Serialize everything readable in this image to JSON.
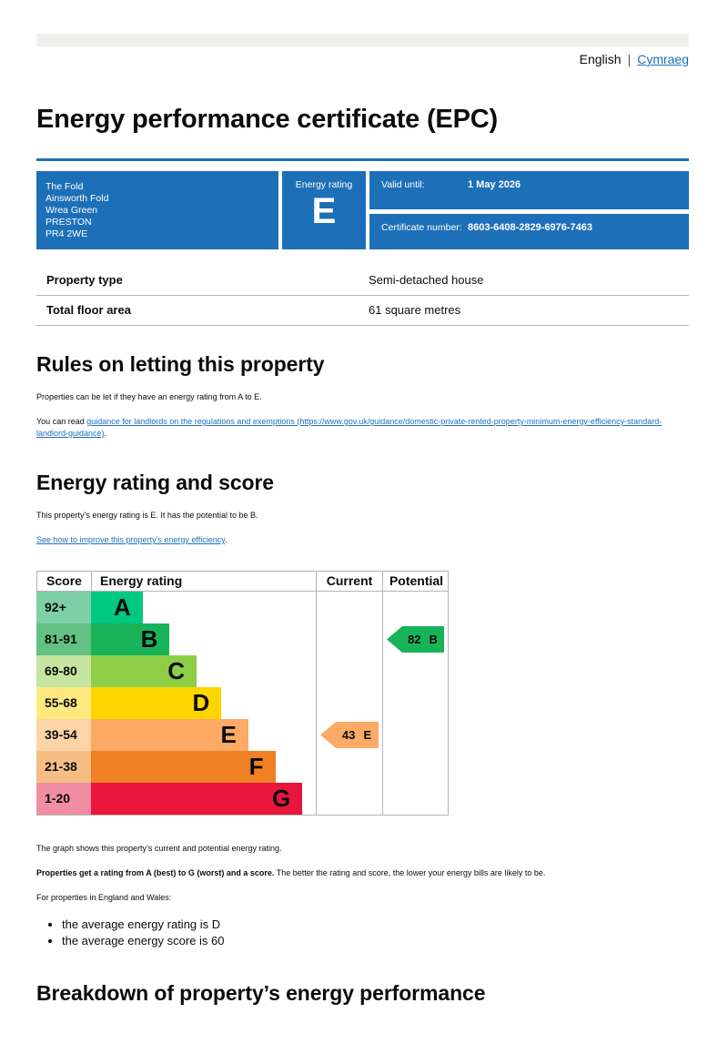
{
  "colors": {
    "accent_blue": "#1d70b8",
    "text_black": "#0b0c0c",
    "border_gray": "#b1b4b6",
    "topbar_gray": "#f0efee"
  },
  "language_bar": {
    "current_language": "English",
    "separator": "|",
    "welsh_link": "Cymraeg"
  },
  "page_title": "Energy performance certificate (EPC)",
  "certificate_panel": {
    "address_lines": [
      "The Fold",
      "Ainsworth Fold",
      "Wrea Green",
      "PRESTON",
      "PR4 2WE"
    ],
    "energy_rating_label": "Energy rating",
    "energy_rating_value": "E",
    "valid_until_label": "Valid until:",
    "valid_until_value": "1 May 2026",
    "certificate_number_label": "Certificate number:",
    "certificate_number_value": "8603-6408-2829-6976-7463"
  },
  "property_summary": {
    "rows": [
      {
        "label": "Property type",
        "value": "Semi-detached house"
      },
      {
        "label": "Total floor area",
        "value": "61 square metres"
      }
    ]
  },
  "rules_section": {
    "heading": "Rules on letting this property",
    "paragraph": "Properties can be let if they have an energy rating from A to E.",
    "link_prefix": "You can read ",
    "link_text": "guidance for landlords on the regulations and exemptions (https://www.gov.uk/guidance/domestic-private-rented-property-minimum-energy-efficiency-standard-landlord-guidance)",
    "link_suffix": "."
  },
  "score_section": {
    "heading": "Energy rating and score",
    "paragraph": "This property’s energy rating is E. It has the potential to be B.",
    "improve_link": "See how to improve this property’s energy efficiency",
    "improve_suffix": "."
  },
  "chart_data": {
    "type": "bar",
    "title": "Energy rating and score graph",
    "columns": [
      "Score",
      "Energy rating",
      "Current",
      "Potential"
    ],
    "legend_position": "none",
    "bands": [
      {
        "score": "92+",
        "letter": "A",
        "color": "#00c781",
        "score_cell_color": "#7fcfa6",
        "width_pct": 23
      },
      {
        "score": "81-91",
        "letter": "B",
        "color": "#19b459",
        "score_cell_color": "#63c181",
        "width_pct": 35
      },
      {
        "score": "69-80",
        "letter": "C",
        "color": "#8dce46",
        "score_cell_color": "#c6e5a0",
        "width_pct": 47
      },
      {
        "score": "55-68",
        "letter": "D",
        "color": "#ffd500",
        "score_cell_color": "#ffe97f",
        "width_pct": 58
      },
      {
        "score": "39-54",
        "letter": "E",
        "color": "#fcaa65",
        "score_cell_color": "#fdd4a7",
        "width_pct": 70
      },
      {
        "score": "21-38",
        "letter": "F",
        "color": "#ef8023",
        "score_cell_color": "#f6bd85",
        "width_pct": 82
      },
      {
        "score": "1-20",
        "letter": "G",
        "color": "#e9153b",
        "score_cell_color": "#f18da2",
        "width_pct": 94
      }
    ],
    "current": {
      "score": "43",
      "band": "E",
      "band_index": 4,
      "color": "#fcaa65"
    },
    "potential": {
      "score": "82",
      "band": "B",
      "band_index": 1,
      "color": "#19b459"
    }
  },
  "after_chart": {
    "caption": "The graph shows this property’s current and potential energy rating.",
    "rating_bold": "Properties get a rating from A (best) to G (worst) and a score.",
    "rating_rest": " The better the rating and score, the lower your energy bills are likely to be.",
    "averages_intro": "For properties in England and Wales:",
    "bullets": [
      "the average energy rating is D",
      "the average energy score is 60"
    ]
  },
  "breakdown_section": {
    "heading": "Breakdown of property’s energy performance"
  }
}
